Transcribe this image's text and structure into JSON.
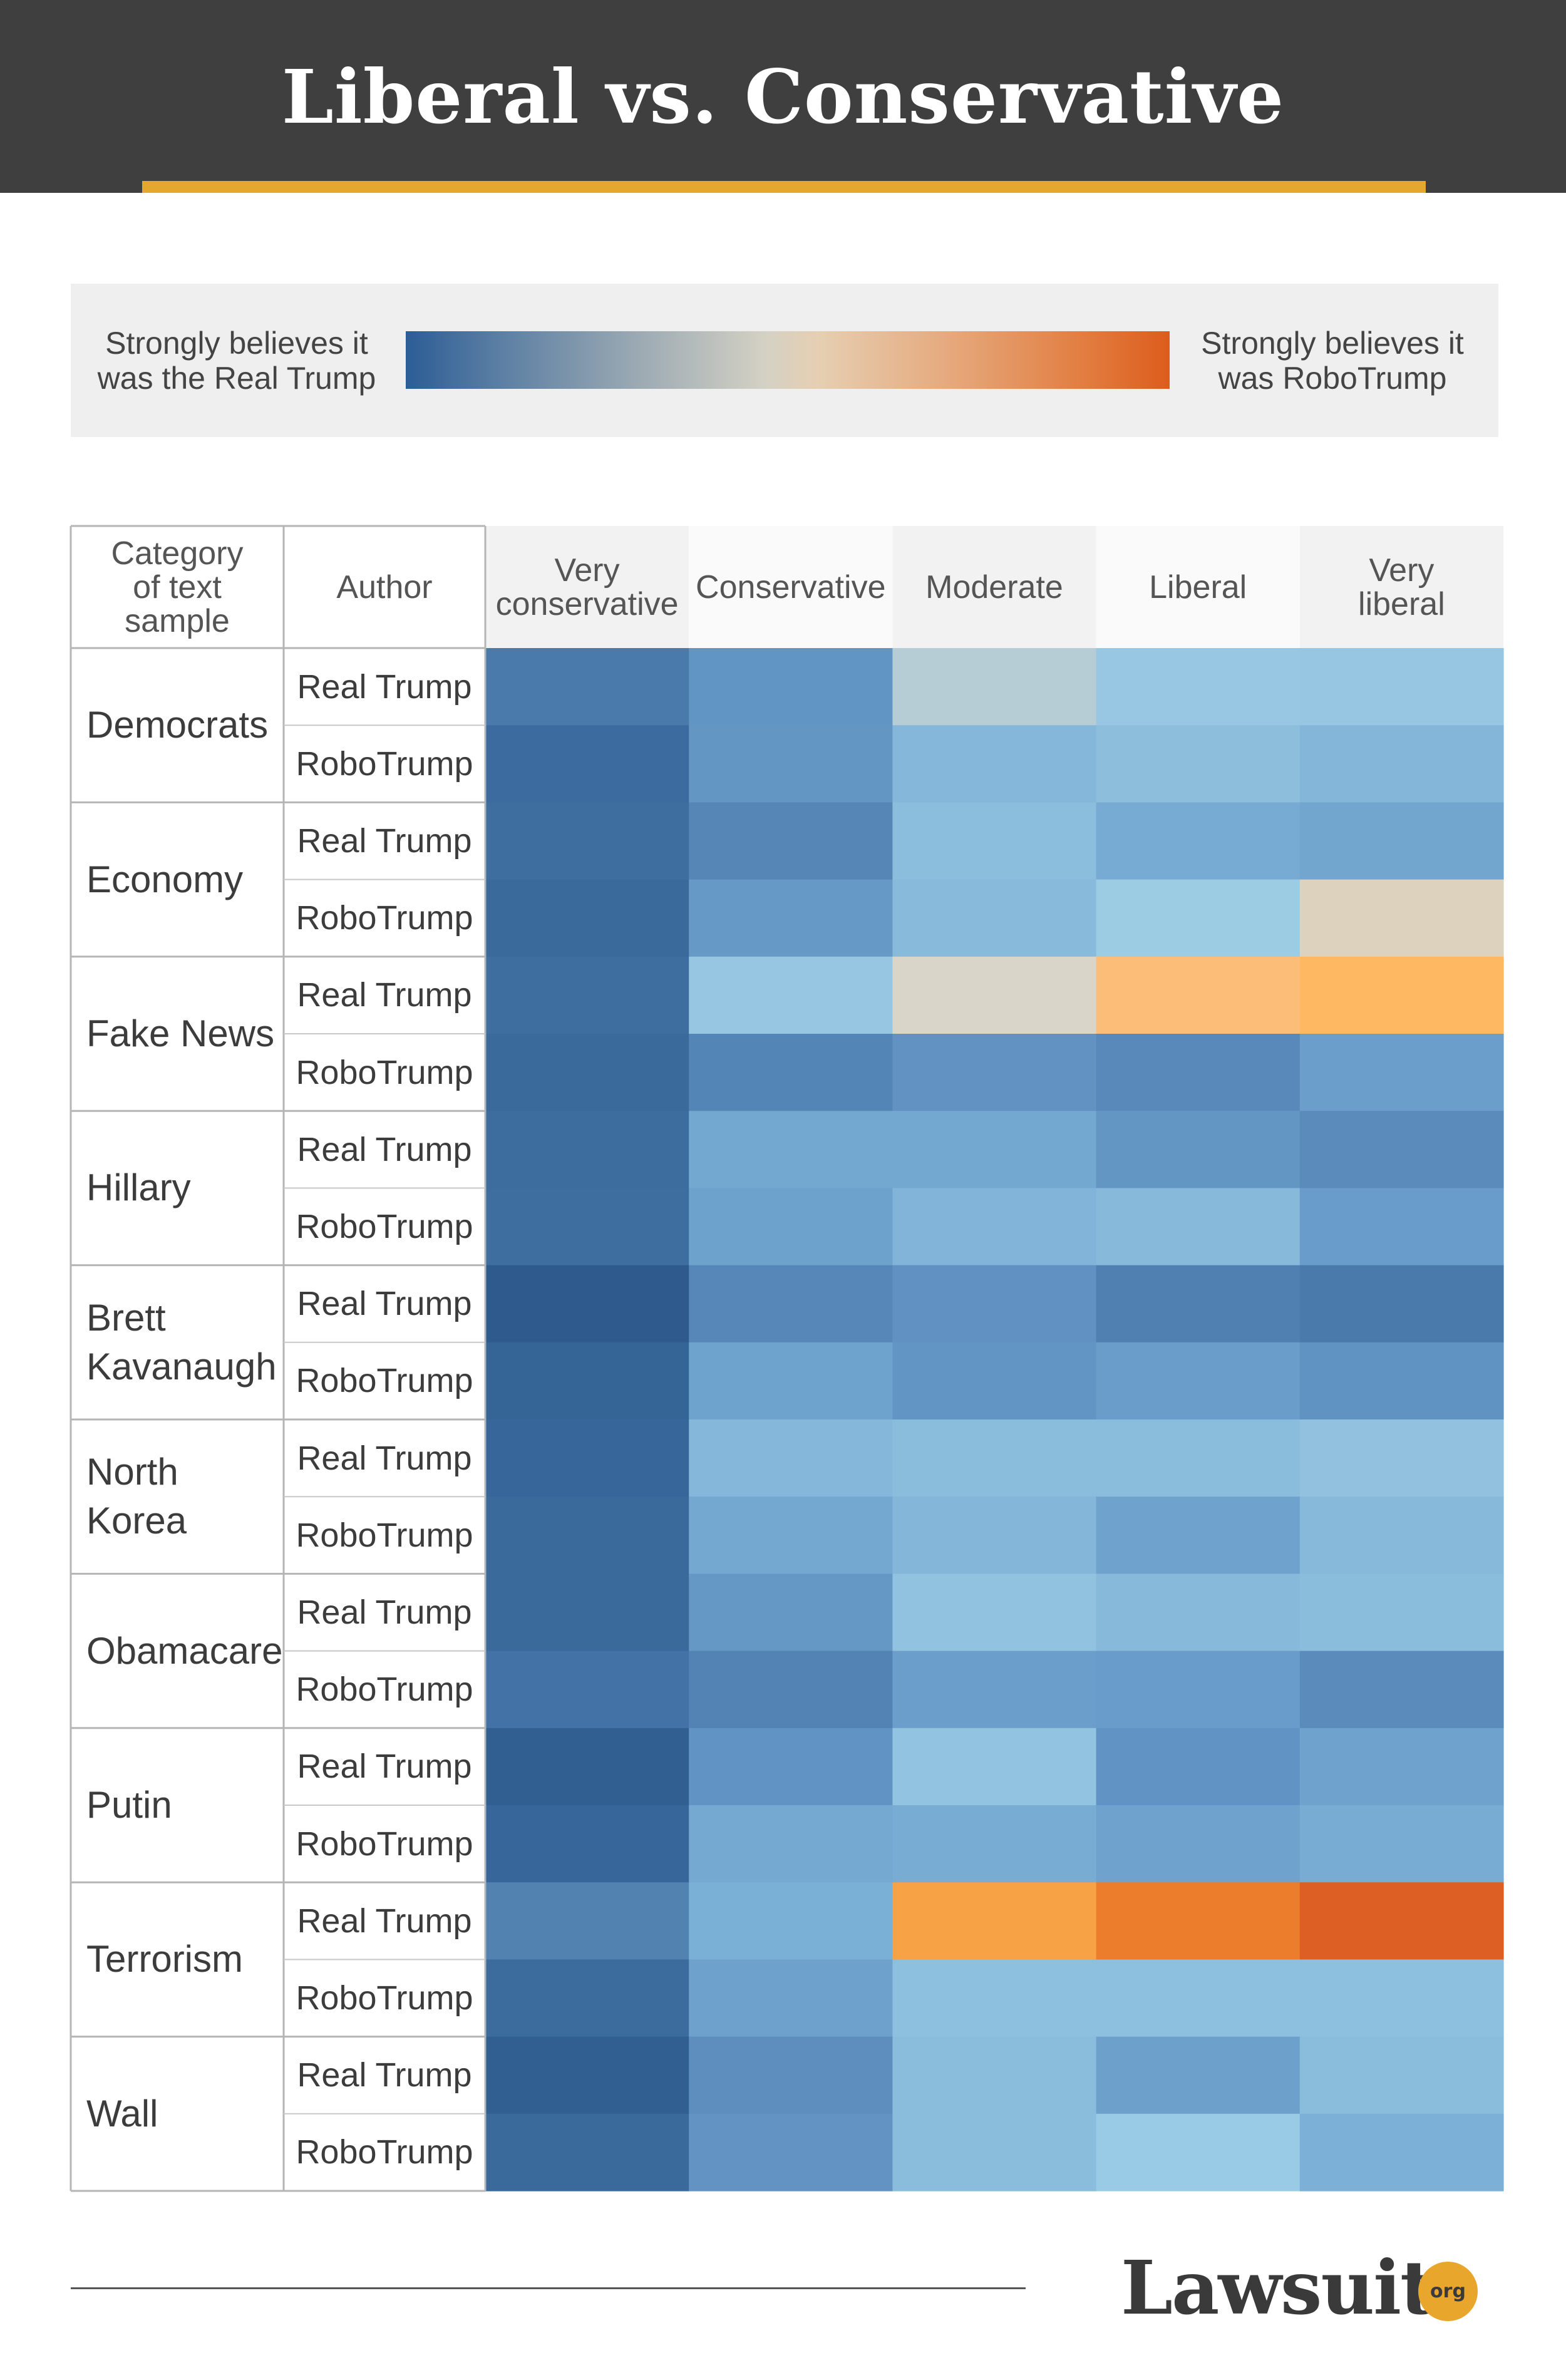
{
  "header": {
    "title": "Liberal vs. Conservative"
  },
  "legend": {
    "left_label": "Strongly believes it\nwas the Real Trump",
    "right_label": "Strongly believes it\nwas RoboTrump"
  },
  "colors": {
    "header_bg": "#3f3f3f",
    "accent": "#e3a82d",
    "scale_real_trump": "#2c5d96",
    "scale_neutral": "#ddd5c4",
    "scale_robotrump": "#dc5d1c"
  },
  "table": {
    "category_header": "Category\nof text\nsample",
    "author_header": "Author"
  },
  "chart_data": {
    "type": "heatmap",
    "title": "Liberal vs. Conservative",
    "scale": {
      "min_label": "Strongly believes it was the Real Trump",
      "max_label": "Strongly believes it was RoboTrump"
    },
    "columns": [
      "Very\nconservative",
      "Conservative",
      "Moderate",
      "Liberal",
      "Very\nliberal"
    ],
    "rows": [
      {
        "category": "Democrats",
        "author": "Real Trump",
        "cells": [
          "#4a7aab",
          "#6095c4",
          "#b6cdd6",
          "#98c7e3",
          "#96c6e2"
        ]
      },
      {
        "category": "Democrats",
        "author": "RoboTrump",
        "cells": [
          "#3b6b9f",
          "#6496c4",
          "#84b7d9",
          "#8dbfdd",
          "#84b6d9"
        ]
      },
      {
        "category": "Economy",
        "author": "Real Trump",
        "cells": [
          "#3e6d9f",
          "#5586b6",
          "#8bbedd",
          "#78abd3",
          "#72a6cf"
        ]
      },
      {
        "category": "Economy",
        "author": "RoboTrump",
        "cells": [
          "#3a6a9c",
          "#6799c6",
          "#87badb",
          "#9ccbe4",
          "#ddd2bd"
        ]
      },
      {
        "category": "Fake News",
        "author": "Real Trump",
        "cells": [
          "#3e6d9f",
          "#96c6e2",
          "#dad5c9",
          "#fbbd78",
          "#fdb861"
        ]
      },
      {
        "category": "Fake News",
        "author": "RoboTrump",
        "cells": [
          "#3a6a9c",
          "#5385b7",
          "#6192c2",
          "#5889ba",
          "#6c9ecb"
        ]
      },
      {
        "category": "Hillary",
        "author": "Real Trump",
        "cells": [
          "#3d6c9f",
          "#73a8d0",
          "#73a8d0",
          "#6496c4",
          "#5a8bbb"
        ]
      },
      {
        "category": "Hillary",
        "author": "RoboTrump",
        "cells": [
          "#3e6d9f",
          "#6da2cd",
          "#81b4d8",
          "#86b9da",
          "#6a9ccb"
        ]
      },
      {
        "category": "Brett\nKavanaugh",
        "author": "Real Trump",
        "cells": [
          "#2f5a8d",
          "#5687b8",
          "#6091c2",
          "#4f80b1",
          "#4a7aab"
        ]
      },
      {
        "category": "Brett\nKavanaugh",
        "author": "RoboTrump",
        "cells": [
          "#356496",
          "#6ea3cd",
          "#6294c4",
          "#6b9dca",
          "#6092c2"
        ]
      },
      {
        "category": "North\nKorea",
        "author": "Real Trump",
        "cells": [
          "#37669a",
          "#84b7da",
          "#8abcdc",
          "#8abcdc",
          "#91c1df"
        ]
      },
      {
        "category": "North\nKorea",
        "author": "RoboTrump",
        "cells": [
          "#3a6a9c",
          "#74a8d1",
          "#83b6d9",
          "#6fa2cd",
          "#86b9da"
        ]
      },
      {
        "category": "Obamacare",
        "author": "Real Trump",
        "cells": [
          "#3a6a9c",
          "#6698c6",
          "#91c3e0",
          "#87b9da",
          "#8abcdc"
        ]
      },
      {
        "category": "Obamacare",
        "author": "RoboTrump",
        "cells": [
          "#4272a6",
          "#5283b4",
          "#6b9eca",
          "#6a9ccb",
          "#5a8bbb"
        ]
      },
      {
        "category": "Putin",
        "author": "Real Trump",
        "cells": [
          "#325f92",
          "#6194c4",
          "#92c3e1",
          "#6194c4",
          "#6fa2cd"
        ]
      },
      {
        "category": "Putin",
        "author": "RoboTrump",
        "cells": [
          "#37679a",
          "#75a9d1",
          "#78acd3",
          "#6fa2cd",
          "#78acd3"
        ]
      },
      {
        "category": "Terrorism",
        "author": "Real Trump",
        "cells": [
          "#5182b0",
          "#7ab0d6",
          "#f6a245",
          "#ec7d2c",
          "#dd5f24"
        ]
      },
      {
        "category": "Terrorism",
        "author": "RoboTrump",
        "cells": [
          "#3c6b9e",
          "#6ea2cd",
          "#8dbfdf",
          "#8dbfdf",
          "#8dbfdf"
        ]
      },
      {
        "category": "Wall",
        "author": "Real Trump",
        "cells": [
          "#325f92",
          "#5d8ebe",
          "#8abcdc",
          "#6da1cb",
          "#8abcdc"
        ]
      },
      {
        "category": "Wall",
        "author": "RoboTrump",
        "cells": [
          "#3a6a9c",
          "#6293c3",
          "#8abcdc",
          "#99cbe6",
          "#7cb0d6"
        ]
      }
    ]
  },
  "footer": {
    "logo_text": "Lawsuit",
    "logo_badge": "org"
  }
}
